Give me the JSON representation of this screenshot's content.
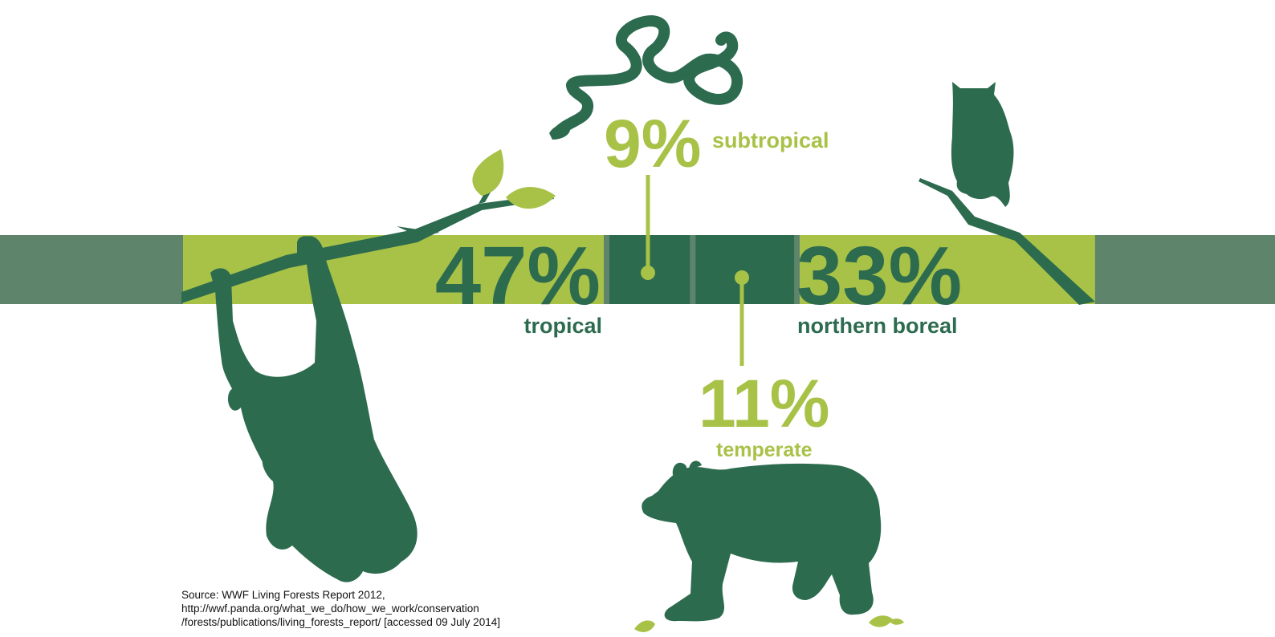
{
  "colors": {
    "dark_green": "#2d6b4f",
    "light_green": "#a8c248",
    "grey_green": "#5e856c",
    "text": "#111111"
  },
  "chart_data": {
    "type": "bar",
    "orientation": "horizontal-stacked",
    "categories": [
      "tropical",
      "subtropical",
      "temperate",
      "northern boreal"
    ],
    "values": [
      47,
      9,
      11,
      33
    ],
    "labels": [
      "47%",
      "9%",
      "11%",
      "33%"
    ],
    "unit": "%",
    "segment_colors": [
      "#a8c248",
      "#2d6b4f",
      "#2d6b4f",
      "#a8c248"
    ],
    "title": "",
    "xlabel": "",
    "ylabel": "",
    "legend": "none",
    "grid": false
  },
  "icons": [
    "orangutan-icon",
    "branch-icon",
    "snake-icon",
    "owl-icon",
    "bear-icon",
    "leaf-icon"
  ],
  "source": {
    "line1": "Source: WWF Living Forests Report 2012,",
    "line2": "http://wwf.panda.org/what_we_do/how_we_work/conservation",
    "line3": "/forests/publications/living_forests_report/ [accessed 09 July 2014]"
  }
}
